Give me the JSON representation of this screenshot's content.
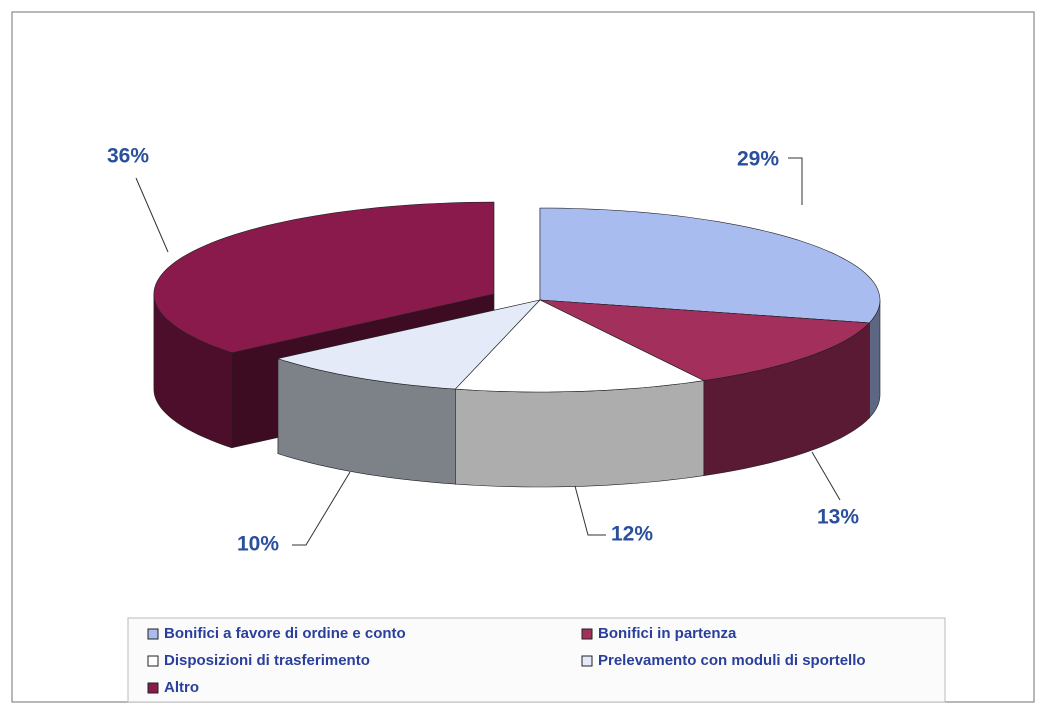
{
  "chart_data": {
    "type": "pie3d",
    "categories": [
      "Bonifici a favore di ordine e conto",
      "Bonifici in partenza",
      "Disposizioni di trasferimento",
      "Prelevamento con moduli di sportello",
      "Altro"
    ],
    "values": [
      29,
      13,
      12,
      10,
      36
    ],
    "value_labels": [
      "29%",
      "13%",
      "12%",
      "10%",
      "36%"
    ],
    "colors": [
      "#a9bcef",
      "#a3305c",
      "#ffffff",
      "#e4eaf8",
      "#8a1a4c"
    ],
    "explode": [
      0,
      0,
      0,
      0,
      0.15
    ],
    "legend": "bottom"
  }
}
